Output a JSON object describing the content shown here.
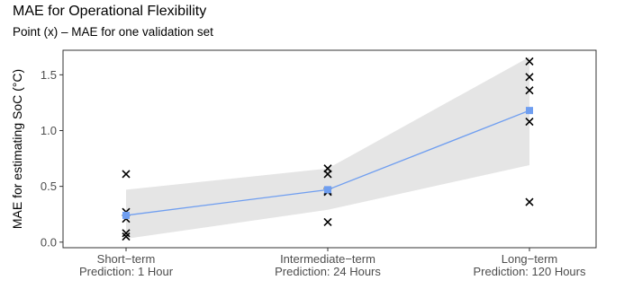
{
  "chart_data": {
    "type": "line",
    "title": "MAE for Operational Flexibility",
    "subtitle": "Point (x) – MAE for one validation set",
    "xlabel": "",
    "ylabel": "MAE for estimating SoC (°C)",
    "ylim": [
      -0.05,
      1.72
    ],
    "yticks": [
      0.0,
      0.5,
      1.0,
      1.5
    ],
    "ytick_labels": [
      "0.0",
      "0.5",
      "1.0",
      "1.5"
    ],
    "categories": [
      [
        "Short−term",
        "Prediction: 1 Hour"
      ],
      [
        "Intermediate−term",
        "Prediction: 24 Hours"
      ],
      [
        "Long−term",
        "Prediction: 120 Hours"
      ]
    ],
    "series": [
      {
        "values": [
          0.24,
          0.47,
          1.18
        ]
      }
    ],
    "confidence_band": {
      "lower": [
        0.03,
        0.29,
        0.69
      ],
      "upper": [
        0.47,
        0.66,
        1.66
      ]
    },
    "validation_points": [
      [
        0.61,
        0.27,
        0.21,
        0.08,
        0.05
      ],
      [
        0.66,
        0.61,
        0.46,
        0.45,
        0.18
      ],
      [
        1.62,
        1.48,
        1.36,
        1.08,
        0.36
      ]
    ],
    "grid": false,
    "legend": "none",
    "colors": {
      "line": "#6f9ef0",
      "marker": "#6f9ef0",
      "band": "#e5e5e5",
      "points": "#000000",
      "border": "#333333"
    }
  }
}
